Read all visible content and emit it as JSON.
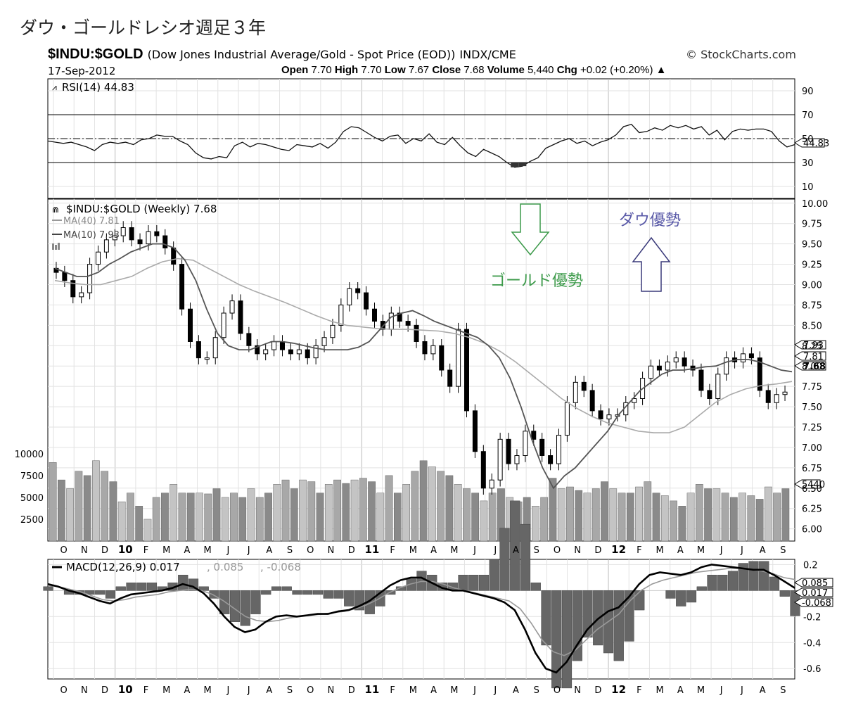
{
  "page": {
    "title": "ダウ・ゴールドレシオ週足３年"
  },
  "header": {
    "symbol": "$INDU:$GOLD",
    "description": "(Dow Jones Industrial Average/Gold - Spot Price (EOD))",
    "exchange": "INDX/CME",
    "brand": "© StockCharts.com",
    "date": "17-Sep-2012",
    "quote": {
      "open_label": "Open",
      "open": "7.70",
      "high_label": "High",
      "high": "7.70",
      "low_label": "Low",
      "low": "7.67",
      "close_label": "Close",
      "close": "7.68",
      "volume_label": "Volume",
      "volume": "5,440",
      "chg_label": "Chg",
      "chg": "+0.02 (+0.20%)"
    }
  },
  "chart_data": [
    {
      "type": "line",
      "panel": "rsi",
      "legend": "RSI(14) 44.83",
      "last_label": "44.83",
      "ylim": [
        0,
        100
      ],
      "y_ticks": [
        "90",
        "70",
        "50",
        "30",
        "10"
      ],
      "levels": [
        70,
        50,
        30
      ],
      "values": [
        48,
        47,
        46,
        47,
        45,
        43,
        40,
        45,
        47,
        46,
        47,
        45,
        49,
        50,
        53,
        52,
        52,
        48,
        45,
        38,
        34,
        33,
        35,
        34,
        44,
        47,
        43,
        46,
        45,
        43,
        41,
        40,
        45,
        44,
        43,
        46,
        42,
        47,
        56,
        60,
        59,
        55,
        51,
        48,
        52,
        53,
        46,
        50,
        48,
        54,
        47,
        45,
        51,
        44,
        38,
        35,
        41,
        38,
        35,
        30,
        26,
        27,
        31,
        34,
        42,
        45,
        48,
        50,
        46,
        48,
        44,
        47,
        49,
        53,
        60,
        62,
        55,
        56,
        59,
        57,
        61,
        59,
        61,
        58,
        60,
        53,
        57,
        49,
        56,
        58,
        57,
        58,
        58,
        56,
        48,
        43,
        45
      ]
    },
    {
      "type": "candlestick",
      "panel": "price",
      "legend_main": "$INDU:$GOLD (Weekly) 7.68",
      "legend_ma40": "MA(40) 7.81",
      "legend_ma10": "MA(10) 7.93",
      "legend_vol": "Volume 5,440",
      "last_labels": {
        "ma10": "7.93",
        "ma40": "7.81",
        "close": "7.68"
      },
      "ylim": [
        5.85,
        10.05
      ],
      "y_ticks": [
        "10.00",
        "9.75",
        "9.50",
        "9.25",
        "9.00",
        "8.75",
        "8.50",
        "8.25",
        "8.00",
        "7.75",
        "7.50",
        "7.25",
        "7.00",
        "6.75",
        "6.50",
        "6.25",
        "6.00"
      ],
      "x_labels": [
        "O",
        "N",
        "D",
        "10",
        "F",
        "M",
        "A",
        "M",
        "J",
        "J",
        "A",
        "S",
        "O",
        "N",
        "D",
        "11",
        "F",
        "M",
        "A",
        "M",
        "J",
        "J",
        "A",
        "S",
        "O",
        "N",
        "D",
        "12",
        "F",
        "M",
        "A",
        "M",
        "J",
        "J",
        "A",
        "S"
      ],
      "close": [
        9.15,
        9.05,
        8.85,
        8.9,
        9.25,
        9.4,
        9.55,
        9.6,
        9.7,
        9.55,
        9.5,
        9.65,
        9.6,
        9.45,
        9.25,
        8.7,
        8.3,
        8.1,
        8.1,
        8.35,
        8.65,
        8.8,
        8.4,
        8.25,
        8.15,
        8.2,
        8.3,
        8.2,
        8.15,
        8.2,
        8.1,
        8.25,
        8.35,
        8.5,
        8.75,
        8.95,
        8.9,
        8.7,
        8.55,
        8.45,
        8.65,
        8.55,
        8.5,
        8.3,
        8.15,
        8.25,
        7.95,
        7.75,
        8.45,
        7.45,
        6.95,
        6.5,
        6.6,
        7.1,
        6.8,
        6.9,
        7.2,
        7.1,
        6.9,
        6.8,
        7.15,
        7.55,
        7.8,
        7.7,
        7.45,
        7.35,
        7.4,
        7.4,
        7.55,
        7.6,
        7.85,
        8.0,
        7.95,
        8.05,
        8.1,
        8.0,
        7.95,
        7.7,
        7.6,
        7.9,
        8.1,
        8.05,
        8.15,
        8.1,
        7.7,
        7.55,
        7.65,
        7.68
      ],
      "ma10": [
        9.2,
        9.15,
        9.1,
        9.1,
        9.15,
        9.25,
        9.32,
        9.4,
        9.45,
        9.5,
        9.5,
        9.45,
        9.3,
        9.05,
        8.7,
        8.4,
        8.25,
        8.2,
        8.2,
        8.25,
        8.3,
        8.3,
        8.28,
        8.25,
        8.22,
        8.2,
        8.2,
        8.2,
        8.23,
        8.3,
        8.45,
        8.6,
        8.65,
        8.68,
        8.62,
        8.55,
        8.5,
        8.45,
        8.4,
        8.35,
        8.25,
        8.1,
        7.85,
        7.5,
        7.1,
        6.75,
        6.5,
        6.65,
        6.75,
        6.9,
        7.05,
        7.2,
        7.4,
        7.55,
        7.7,
        7.8,
        7.9,
        7.95,
        7.95,
        7.97,
        7.99,
        8.0,
        8.05,
        8.08,
        8.08,
        8.05,
        8.0,
        7.95,
        7.93
      ],
      "ma40": [
        9.05,
        9.02,
        9.0,
        9.0,
        9.05,
        9.1,
        9.2,
        9.28,
        9.32,
        9.3,
        9.2,
        9.1,
        9.0,
        8.92,
        8.85,
        8.78,
        8.7,
        8.62,
        8.55,
        8.5,
        8.48,
        8.46,
        8.45,
        8.45,
        8.44,
        8.43,
        8.4,
        8.35,
        8.28,
        8.18,
        8.05,
        7.9,
        7.75,
        7.6,
        7.48,
        7.38,
        7.3,
        7.25,
        7.2,
        7.18,
        7.18,
        7.25,
        7.4,
        7.55,
        7.65,
        7.72,
        7.76,
        7.78,
        7.81
      ]
    },
    {
      "type": "bar",
      "panel": "volume",
      "ylim": [
        0,
        12000
      ],
      "y_ticks": [
        "10000",
        "7500",
        "5000",
        "2500"
      ],
      "last_label": "5440",
      "values": [
        9000,
        7000,
        6000,
        8000,
        7500,
        9200,
        8000,
        6800,
        4500,
        5500,
        4000,
        2500,
        5000,
        5500,
        6500,
        5500,
        5500,
        5500,
        5400,
        6000,
        5000,
        5500,
        5000,
        6000,
        5000,
        5500,
        6500,
        7000,
        6000,
        7000,
        6800,
        5500,
        6500,
        7000,
        6600,
        7000,
        7200,
        6800,
        5500,
        7500,
        5500,
        6500,
        8000,
        9200,
        8500,
        8000,
        7500,
        6500,
        6000,
        5500,
        4600,
        5500,
        6000,
        5000,
        4500,
        5000,
        4000,
        5000,
        7200,
        6000,
        6200,
        5800,
        5500,
        6000,
        6800,
        6000,
        5500,
        5500,
        6200,
        6800,
        5500,
        5200,
        4600,
        4000,
        5500,
        6500,
        6000,
        6000,
        5500,
        5000,
        5500,
        5200,
        4800,
        6200,
        5500,
        6000
      ]
    },
    {
      "type": "line",
      "panel": "macd",
      "legend_main": "MACD(12,26,9) 0.017",
      "legend_signal": ", 0.085",
      "legend_hist": ", -0.068",
      "last_labels": {
        "signal": "0.085",
        "macd": "0.017",
        "hist": "-0.068"
      },
      "ylim": [
        -0.68,
        0.24
      ],
      "y_ticks": [
        "0.2",
        "-0.2",
        "-0.4",
        "-0.6"
      ],
      "macd": [
        0.05,
        0.03,
        0.0,
        -0.02,
        -0.05,
        -0.08,
        -0.1,
        -0.06,
        -0.03,
        -0.02,
        -0.01,
        0.0,
        0.02,
        0.05,
        0.03,
        -0.02,
        -0.1,
        -0.2,
        -0.28,
        -0.32,
        -0.3,
        -0.24,
        -0.2,
        -0.19,
        -0.2,
        -0.19,
        -0.18,
        -0.18,
        -0.16,
        -0.15,
        -0.12,
        -0.08,
        -0.02,
        0.04,
        0.08,
        0.1,
        0.1,
        0.06,
        0.02,
        0.0,
        0.0,
        -0.02,
        -0.04,
        -0.06,
        -0.09,
        -0.15,
        -0.3,
        -0.48,
        -0.6,
        -0.63,
        -0.55,
        -0.42,
        -0.3,
        -0.22,
        -0.16,
        -0.13,
        -0.05,
        0.05,
        0.12,
        0.14,
        0.13,
        0.12,
        0.14,
        0.18,
        0.2,
        0.19,
        0.18,
        0.17,
        0.16,
        0.16,
        0.12,
        0.07,
        0.02
      ],
      "signal": [
        0.04,
        0.03,
        0.01,
        -0.01,
        -0.04,
        -0.07,
        -0.08,
        -0.07,
        -0.05,
        -0.04,
        -0.03,
        -0.01,
        0.0,
        0.01,
        0.0,
        -0.03,
        -0.08,
        -0.14,
        -0.2,
        -0.23,
        -0.24,
        -0.23,
        -0.21,
        -0.2,
        -0.19,
        -0.18,
        -0.17,
        -0.16,
        -0.14,
        -0.11,
        -0.07,
        -0.02,
        0.02,
        0.05,
        0.07,
        0.07,
        0.05,
        0.02,
        0.0,
        -0.02,
        -0.04,
        -0.06,
        -0.08,
        -0.14,
        -0.25,
        -0.38,
        -0.47,
        -0.5,
        -0.46,
        -0.38,
        -0.3,
        -0.24,
        -0.18,
        -0.08,
        0.0,
        0.05,
        0.08,
        0.1,
        0.12,
        0.14,
        0.15,
        0.16,
        0.17,
        0.17,
        0.16,
        0.15,
        0.13,
        0.1,
        0.085
      ]
    }
  ],
  "annotations": {
    "gold": "ゴールド優勢",
    "dow": "ダウ優勢"
  }
}
